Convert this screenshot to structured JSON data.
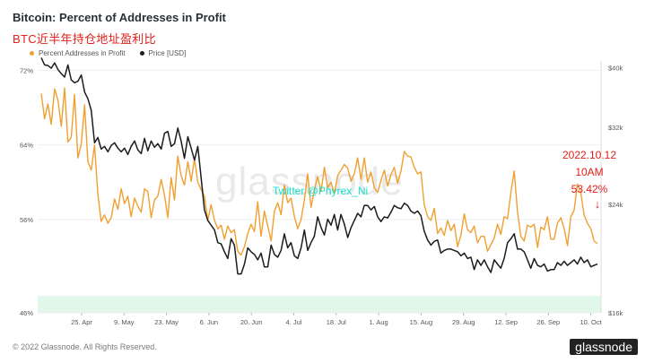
{
  "header": {
    "title": "Bitcoin: Percent of Addresses in Profit",
    "subtitle": "BTC近半年持仓地址盈利比"
  },
  "watermark": "glassnode",
  "overlay_text": "Twitter @Phyrex_Ni",
  "annotation": {
    "lines": [
      "2022.10.12",
      "10AM",
      "53.42%"
    ],
    "arrow": "↓"
  },
  "footer": "© 2022 Glassnode. All Rights Reserved.",
  "brand": "glassnode",
  "colors": {
    "percent": "#f0a030",
    "price": "#1c1c1c",
    "band": "#e0f7ea",
    "grid": "#eeeeee"
  },
  "chart_data": {
    "type": "line",
    "x_tick_labels": [
      "25. Apr",
      "9. May",
      "23. May",
      "6. Jun",
      "20. Jun",
      "4. Jul",
      "18. Jul",
      "1. Aug",
      "15. Aug",
      "29. Aug",
      "12. Sep",
      "26. Sep",
      "10. Oct"
    ],
    "left_axis": {
      "ticks": [
        "46%",
        "56%",
        "64%",
        "72%"
      ],
      "ylim": [
        46,
        73
      ]
    },
    "right_axis": {
      "ticks": [
        "$16k",
        "$24k",
        "$32k",
        "$40k"
      ],
      "ylim": [
        16,
        41
      ],
      "scale": "log"
    },
    "grid": true,
    "legend_position": "top-left",
    "series": [
      {
        "name": "Percent Addresses in Profit",
        "color": "#f0a030",
        "axis": "left",
        "values": [
          69.5,
          66.8,
          68.4,
          66.2,
          70.0,
          68.8,
          66.0,
          70.1,
          64.3,
          64.8,
          69.4,
          62.6,
          64.1,
          68.3,
          62.2,
          61.3,
          64.0,
          58.7,
          55.8,
          56.5,
          55.6,
          56.2,
          58.2,
          57.1,
          59.3,
          57.7,
          58.5,
          56.3,
          58.3,
          57.4,
          56.8,
          59.3,
          59.0,
          56.2,
          58.1,
          58.5,
          60.3,
          58.6,
          56.2,
          60.5,
          58.1,
          62.8,
          60.7,
          59.7,
          62.2,
          60.1,
          62.5,
          60.0,
          59.2,
          58.5,
          55.9,
          57.6,
          55.9,
          55.0,
          55.4,
          53.9,
          55.3,
          54.6,
          54.9,
          52.6,
          52.2,
          53.1,
          54.5,
          55.5,
          54.7,
          57.9,
          54.2,
          56.9,
          55.3,
          53.7,
          56.9,
          57.8,
          56.5,
          59.7,
          57.8,
          58.3,
          56.3,
          55.0,
          56.0,
          58.1,
          60.9,
          57.3,
          59.2,
          60.6,
          59.0,
          61.6,
          59.4,
          60.0,
          58.8,
          60.7,
          61.3,
          61.9,
          61.5,
          60.1,
          60.9,
          62.6,
          60.3,
          62.6,
          60.0,
          61.1,
          59.4,
          58.9,
          60.2,
          61.3,
          59.6,
          60.8,
          61.6,
          59.9,
          61.2,
          63.3,
          62.8,
          62.7,
          61.6,
          60.9,
          61.1,
          57.6,
          56.3,
          55.9,
          57.2,
          54.5,
          55.1,
          54.3,
          55.9,
          54.8,
          55.5,
          53.1,
          54.3,
          56.6,
          54.9,
          54.6,
          55.3,
          53.5,
          54.2,
          54.2,
          52.6,
          53.3,
          54.0,
          55.5,
          54.4,
          56.3,
          56.1,
          58.9,
          61.2,
          56.8,
          54.2,
          53.7,
          55.4,
          55.2,
          55.5,
          53.0,
          55.2,
          54.9,
          56.3,
          53.9,
          53.9,
          55.6,
          56.2,
          55.0,
          53.2,
          56.3,
          57.0,
          59.8,
          58.9,
          56.5,
          55.6,
          55.0,
          53.7,
          53.4
        ]
      },
      {
        "name": "Price [USD]",
        "color": "#1c1c1c",
        "axis": "right",
        "values": [
          41.5,
          40.4,
          40.3,
          39.9,
          40.7,
          39.7,
          39.1,
          38.6,
          40.4,
          38.2,
          37.8,
          38.0,
          38.9,
          36.5,
          35.6,
          34.1,
          30.2,
          30.8,
          29.5,
          29.8,
          29.2,
          29.9,
          30.2,
          29.6,
          29.2,
          29.6,
          28.9,
          29.8,
          30.4,
          29.4,
          29.0,
          30.7,
          29.3,
          30.4,
          29.7,
          30.1,
          29.5,
          31.3,
          31.5,
          29.8,
          30.1,
          31.9,
          30.4,
          28.5,
          30.9,
          29.6,
          28.3,
          29.8,
          26.5,
          23.5,
          22.6,
          22.2,
          21.8,
          20.8,
          20.7,
          20.1,
          19.6,
          21.1,
          20.6,
          18.5,
          18.5,
          19.2,
          20.4,
          20.1,
          19.9,
          19.5,
          20.0,
          19.0,
          19.0,
          20.6,
          19.9,
          19.7,
          20.2,
          21.5,
          20.4,
          20.8,
          19.8,
          19.6,
          20.4,
          21.8,
          20.2,
          20.8,
          21.3,
          22.9,
          22.0,
          21.4,
          22.7,
          22.2,
          23.1,
          21.8,
          23.1,
          22.3,
          21.2,
          22.0,
          22.6,
          23.2,
          22.9,
          23.9,
          23.9,
          23.5,
          23.8,
          22.9,
          22.5,
          22.9,
          22.8,
          23.3,
          23.9,
          23.7,
          23.6,
          24.1,
          23.9,
          23.4,
          23.2,
          23.4,
          23.0,
          21.7,
          21.0,
          20.6,
          20.9,
          21.0,
          20.0,
          20.2,
          20.3,
          20.3,
          20.2,
          20.1,
          19.8,
          20.0,
          19.6,
          19.7,
          18.8,
          19.5,
          19.1,
          19.5,
          19.0,
          18.6,
          19.5,
          19.2,
          18.9,
          19.6,
          20.8,
          21.1,
          21.5,
          20.3,
          20.3,
          20.1,
          19.5,
          18.9,
          19.6,
          19.1,
          19.0,
          19.2,
          18.7,
          18.8,
          18.8,
          19.3,
          19.1,
          19.4,
          19.1,
          19.3,
          19.5,
          19.2,
          19.7,
          19.3,
          19.5,
          19.0,
          19.1,
          19.2
        ]
      }
    ]
  }
}
